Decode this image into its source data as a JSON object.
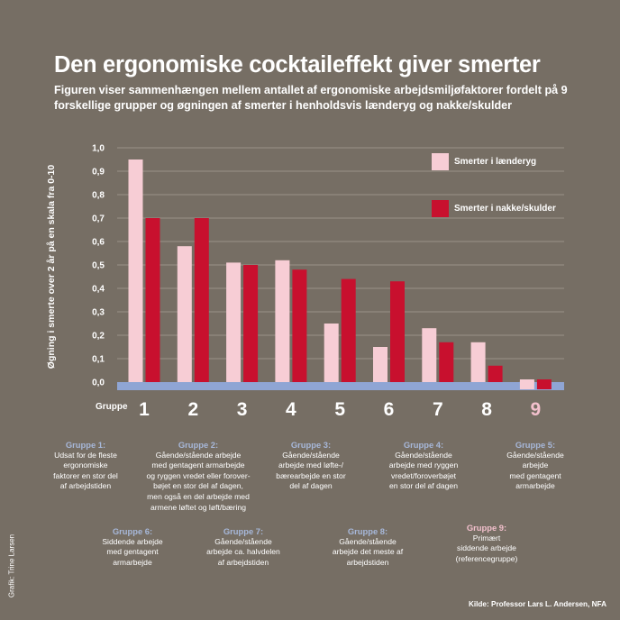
{
  "title": "Den ergonomiske cocktaileffekt giver smerter",
  "subtitle": "Figuren viser sammenhængen mellem antallet af ergonomiske arbejdsmiljøfaktorer fordelt på 9 forskellige grupper og øgningen af smerter i henholdsvis lænderyg og nakke/skulder",
  "colors": {
    "background": "#766e64",
    "lower_back": "#f7cdd5",
    "neck_shoulder": "#c8102e",
    "baseline": "#8fa5d4",
    "group_title": "#a7b8da",
    "reference_title": "#f3c0cd"
  },
  "group_axis_word": "Gruppe",
  "chart_data": {
    "type": "bar",
    "title": "Den ergonomiske cocktaileffekt giver smerter",
    "ylabel": "Øgning i smerte over 2 år på en skala fra 0-10",
    "xlabel": "Gruppe",
    "ylim": [
      0,
      1.0
    ],
    "yticks": [
      "0,0",
      "0,1",
      "0,2",
      "0,3",
      "0,4",
      "0,5",
      "0,6",
      "0,7",
      "0,8",
      "0,9",
      "1,0"
    ],
    "categories": [
      "1",
      "2",
      "3",
      "4",
      "5",
      "6",
      "7",
      "8",
      "9"
    ],
    "reference_category": "9",
    "grid": true,
    "legend_position": "top-right",
    "series": [
      {
        "name": "Smerter i lænderyg",
        "color": "#f7cdd5",
        "values": [
          0.95,
          0.58,
          0.51,
          0.52,
          0.25,
          0.15,
          0.23,
          0.17,
          0.0
        ]
      },
      {
        "name": "Smerter i nakke/skulder",
        "color": "#c8102e",
        "values": [
          0.7,
          0.7,
          0.5,
          0.48,
          0.44,
          0.43,
          0.17,
          0.07,
          0.0
        ]
      }
    ]
  },
  "groups": [
    {
      "title": "Gruppe 1:",
      "lines": [
        "Udsat for de fleste",
        "ergonomiske",
        "faktorer en stor del",
        "af arbejdstiden"
      ]
    },
    {
      "title": "Gruppe 2:",
      "lines": [
        "Gående/stående arbejde",
        "med gentagent armarbejde",
        "og ryggen vredet eller forover-",
        "bøjet en stor del af dagen,",
        "men også en del arbejde med",
        "armene løftet og løft/bæring"
      ]
    },
    {
      "title": "Gruppe 3:",
      "lines": [
        "Gående/stående",
        "arbejde med løfte-/",
        "bærearbejde en stor",
        "del af dagen"
      ]
    },
    {
      "title": "Gruppe 4:",
      "lines": [
        "Gående/stående",
        "arbejde med ryggen",
        "vredet/foroverbøjet",
        "en stor del af dagen"
      ]
    },
    {
      "title": "Gruppe 5:",
      "lines": [
        "Gående/stående",
        "arbejde",
        "med gentagent",
        "armarbejde"
      ]
    },
    {
      "title": "Gruppe 6:",
      "lines": [
        "Siddende arbejde",
        "med gentagent",
        "armarbejde"
      ]
    },
    {
      "title": "Gruppe 7:",
      "lines": [
        "Gående/stående",
        "arbejde ca. halvdelen",
        "af arbejdstiden"
      ]
    },
    {
      "title": "Gruppe 8:",
      "lines": [
        "Gående/stående",
        "arbejde det meste af",
        "arbejdstiden"
      ]
    },
    {
      "title": "Gruppe 9:",
      "lines": [
        "Primært",
        "siddende arbejde",
        "(referencegruppe)"
      ]
    }
  ],
  "credit": "Grafik: Trine Larsen",
  "source": "Kilde: Professor Lars L. Andersen, NFA"
}
